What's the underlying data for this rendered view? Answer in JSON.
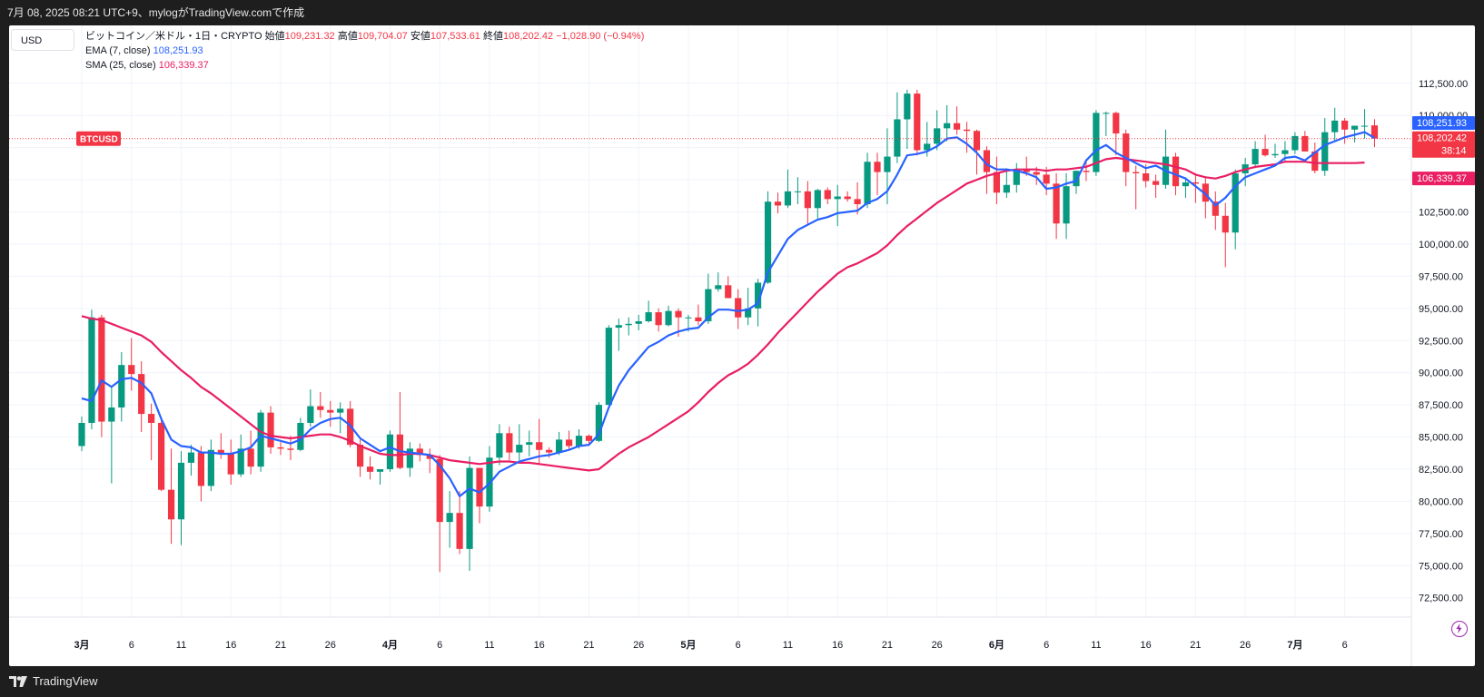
{
  "header": {
    "caption": "7月 08, 2025 08:21 UTC+9、mylogがTradingView.comで作成"
  },
  "currency_button": "USD",
  "legend": {
    "symbol": "ビットコイン／米ドル・1日・CRYPTO",
    "open_label": "始値",
    "open": "109,231.32",
    "high_label": "高値",
    "high": "109,704.07",
    "low_label": "安値",
    "low": "107,533.61",
    "close_label": "終値",
    "close": "108,202.42",
    "change": "−1,028.90 (−0.94%)",
    "ema_label": "EMA (7, close)",
    "ema_value": "108,251.93",
    "sma_label": "SMA (25, close)",
    "sma_value": "106,339.37"
  },
  "price_tags": {
    "ema": "108,251.93",
    "last": "108,202.42",
    "countdown": "38:14",
    "sma": "106,339.37",
    "symbol_tag": "BTCUSD"
  },
  "footer": {
    "brand": "TradingView"
  },
  "colors": {
    "up": "#089981",
    "down": "#f23645",
    "ema": "#2962ff",
    "sma": "#e91e63",
    "last_price": "#f23645"
  },
  "chart_data": {
    "type": "candlestick",
    "timeframe": "1D",
    "ylim": [
      71000,
      117000
    ],
    "y_ticks": [
      "72,500.00",
      "75,000.00",
      "77,500.00",
      "80,000.00",
      "82,500.00",
      "85,000.00",
      "87,500.00",
      "90,000.00",
      "92,500.00",
      "95,000.00",
      "97,500.00",
      "100,000.00",
      "102,500.00",
      "105,000.00",
      "107,500.00",
      "110,000.00",
      "112,500.00"
    ],
    "x_ticks": [
      {
        "label": "3月",
        "i": 0
      },
      {
        "label": "6",
        "i": 5
      },
      {
        "label": "11",
        "i": 10
      },
      {
        "label": "16",
        "i": 15
      },
      {
        "label": "21",
        "i": 20
      },
      {
        "label": "26",
        "i": 25
      },
      {
        "label": "4月",
        "i": 31
      },
      {
        "label": "6",
        "i": 36
      },
      {
        "label": "11",
        "i": 41
      },
      {
        "label": "16",
        "i": 46
      },
      {
        "label": "21",
        "i": 51
      },
      {
        "label": "26",
        "i": 56
      },
      {
        "label": "5月",
        "i": 61
      },
      {
        "label": "6",
        "i": 66
      },
      {
        "label": "11",
        "i": 71
      },
      {
        "label": "16",
        "i": 76
      },
      {
        "label": "21",
        "i": 81
      },
      {
        "label": "26",
        "i": 86
      },
      {
        "label": "6月",
        "i": 92
      },
      {
        "label": "6",
        "i": 97
      },
      {
        "label": "11",
        "i": 102
      },
      {
        "label": "16",
        "i": 107
      },
      {
        "label": "21",
        "i": 112
      },
      {
        "label": "26",
        "i": 117
      },
      {
        "label": "7月",
        "i": 122
      },
      {
        "label": "6",
        "i": 127
      }
    ],
    "ohlc": [
      [
        84300,
        86600,
        83900,
        86100
      ],
      [
        86100,
        94900,
        85600,
        94300
      ],
      [
        94300,
        94500,
        85000,
        86200
      ],
      [
        86200,
        88900,
        81400,
        87300
      ],
      [
        87300,
        91600,
        86200,
        90600
      ],
      [
        90600,
        92700,
        88600,
        89900
      ],
      [
        89900,
        90900,
        85400,
        86800
      ],
      [
        86800,
        87600,
        83200,
        86100
      ],
      [
        86100,
        86300,
        80800,
        80900
      ],
      [
        80900,
        84100,
        76700,
        78600
      ],
      [
        78600,
        83900,
        76600,
        83000
      ],
      [
        83000,
        84400,
        82000,
        83800
      ],
      [
        83800,
        84300,
        80000,
        81200
      ],
      [
        81200,
        84800,
        80800,
        84000
      ],
      [
        84000,
        85300,
        83300,
        83700
      ],
      [
        83700,
        84800,
        81300,
        82100
      ],
      [
        82100,
        85200,
        81900,
        84100
      ],
      [
        84100,
        85500,
        82100,
        82700
      ],
      [
        82700,
        87100,
        82300,
        86900
      ],
      [
        86900,
        87400,
        83700,
        84200
      ],
      [
        84200,
        84600,
        83600,
        84100
      ],
      [
        84100,
        85100,
        83200,
        84000
      ],
      [
        84000,
        86500,
        83900,
        86100
      ],
      [
        86100,
        88700,
        85800,
        87400
      ],
      [
        87400,
        88500,
        86500,
        87100
      ],
      [
        87100,
        87800,
        85800,
        86900
      ],
      [
        86900,
        87700,
        85300,
        87200
      ],
      [
        87200,
        87800,
        84200,
        84400
      ],
      [
        84400,
        84800,
        81900,
        82700
      ],
      [
        82700,
        83500,
        81700,
        82300
      ],
      [
        82300,
        82500,
        81300,
        82500
      ],
      [
        82500,
        85500,
        82300,
        85200
      ],
      [
        85200,
        88500,
        82500,
        82600
      ],
      [
        82600,
        84600,
        81900,
        84100
      ],
      [
        84100,
        84500,
        83100,
        83600
      ],
      [
        83600,
        84100,
        82200,
        83300
      ],
      [
        83300,
        83600,
        74500,
        78400
      ],
      [
        78400,
        80800,
        76400,
        79100
      ],
      [
        79100,
        80800,
        75900,
        76300
      ],
      [
        76300,
        83500,
        74600,
        82600
      ],
      [
        82600,
        82600,
        78300,
        79600
      ],
      [
        79600,
        84300,
        79200,
        83400
      ],
      [
        83400,
        86000,
        82800,
        85300
      ],
      [
        85300,
        85800,
        83200,
        83800
      ],
      [
        83800,
        86000,
        83200,
        84400
      ],
      [
        84400,
        85500,
        83500,
        84600
      ],
      [
        84600,
        86400,
        82900,
        84000
      ],
      [
        84000,
        84200,
        83400,
        83800
      ],
      [
        83800,
        85400,
        83600,
        84800
      ],
      [
        84800,
        85500,
        84100,
        84300
      ],
      [
        84300,
        85600,
        84100,
        85100
      ],
      [
        85100,
        85200,
        84500,
        84700
      ],
      [
        84700,
        87700,
        84600,
        87500
      ],
      [
        87500,
        93700,
        87500,
        93500
      ],
      [
        93500,
        94200,
        91700,
        93700
      ],
      [
        93700,
        94300,
        92900,
        93800
      ],
      [
        93800,
        94500,
        93300,
        94000
      ],
      [
        94000,
        95600,
        93900,
        94700
      ],
      [
        94700,
        95000,
        93200,
        93700
      ],
      [
        93700,
        95200,
        93600,
        94800
      ],
      [
        94800,
        95000,
        92800,
        94300
      ],
      [
        94300,
        94500,
        93200,
        94300
      ],
      [
        94300,
        95300,
        93700,
        94000
      ],
      [
        94000,
        97700,
        93800,
        96500
      ],
      [
        96500,
        97800,
        96300,
        96800
      ],
      [
        96800,
        97500,
        95800,
        95800
      ],
      [
        95800,
        96500,
        93400,
        94300
      ],
      [
        94300,
        96600,
        93700,
        95000
      ],
      [
        95000,
        97300,
        93600,
        97000
      ],
      [
        97000,
        104100,
        96900,
        103300
      ],
      [
        103300,
        104000,
        102400,
        103000
      ],
      [
        103000,
        105800,
        102800,
        104100
      ],
      [
        104100,
        105200,
        103100,
        104100
      ],
      [
        104100,
        104900,
        101500,
        102800
      ],
      [
        102800,
        104300,
        102000,
        104200
      ],
      [
        104200,
        104400,
        103100,
        103500
      ],
      [
        103500,
        104600,
        101400,
        103700
      ],
      [
        103700,
        104100,
        103300,
        103500
      ],
      [
        103500,
        104800,
        102300,
        103100
      ],
      [
        103100,
        107100,
        102800,
        106400
      ],
      [
        106400,
        107100,
        103800,
        105600
      ],
      [
        105600,
        109000,
        103100,
        106800
      ],
      [
        106800,
        111800,
        106300,
        109700
      ],
      [
        109700,
        112000,
        107400,
        111700
      ],
      [
        111700,
        112000,
        106900,
        107300
      ],
      [
        107300,
        109500,
        106800,
        107800
      ],
      [
        107800,
        110400,
        107300,
        109000
      ],
      [
        109000,
        110800,
        108000,
        109400
      ],
      [
        109400,
        110700,
        108500,
        108900
      ],
      [
        108900,
        109500,
        107100,
        108800
      ],
      [
        108800,
        108900,
        105400,
        107300
      ],
      [
        107300,
        107600,
        103900,
        105600
      ],
      [
        105600,
        106800,
        103100,
        104000
      ],
      [
        104000,
        105900,
        103600,
        104600
      ],
      [
        104600,
        106300,
        104000,
        105800
      ],
      [
        105800,
        106800,
        105300,
        105600
      ],
      [
        105600,
        106000,
        104600,
        105400
      ],
      [
        105400,
        106000,
        103800,
        104700
      ],
      [
        104700,
        105500,
        100400,
        101600
      ],
      [
        101600,
        105500,
        100400,
        104500
      ],
      [
        104500,
        105700,
        103900,
        105700
      ],
      [
        105700,
        106500,
        104900,
        105600
      ],
      [
        105600,
        110400,
        105300,
        110200
      ],
      [
        110200,
        110300,
        108400,
        110200
      ],
      [
        110200,
        110300,
        106900,
        108600
      ],
      [
        108600,
        108900,
        104500,
        105600
      ],
      [
        105600,
        106100,
        102700,
        105500
      ],
      [
        105500,
        106200,
        104400,
        104900
      ],
      [
        104900,
        105400,
        103600,
        104600
      ],
      [
        104600,
        108900,
        104300,
        106800
      ],
      [
        106800,
        107100,
        103800,
        104500
      ],
      [
        104500,
        105200,
        103600,
        104800
      ],
      [
        104800,
        105500,
        103200,
        104700
      ],
      [
        104700,
        105200,
        102000,
        103300
      ],
      [
        103300,
        104100,
        101100,
        102200
      ],
      [
        102200,
        103200,
        98200,
        100900
      ],
      [
        100900,
        105800,
        99600,
        105500
      ],
      [
        105500,
        106700,
        104500,
        106200
      ],
      [
        106200,
        108000,
        105900,
        107400
      ],
      [
        107400,
        108500,
        106800,
        106900
      ],
      [
        106900,
        107800,
        106700,
        107000
      ],
      [
        107000,
        108000,
        106400,
        107300
      ],
      [
        107300,
        108700,
        107000,
        108400
      ],
      [
        108400,
        108800,
        107300,
        107200
      ],
      [
        107200,
        107900,
        105500,
        105700
      ],
      [
        105700,
        109800,
        105300,
        108700
      ],
      [
        108700,
        110600,
        108000,
        109600
      ],
      [
        109600,
        109800,
        107800,
        108900
      ],
      [
        108900,
        109200,
        107900,
        109200
      ],
      [
        109200,
        110500,
        108200,
        109200
      ],
      [
        109231,
        109704,
        107534,
        108202
      ]
    ],
    "ema7": [
      88000,
      87800,
      89400,
      88900,
      89500,
      89600,
      89200,
      88400,
      86400,
      84800,
      84300,
      84200,
      83800,
      83800,
      83700,
      83700,
      83900,
      84200,
      85100,
      84900,
      84700,
      84500,
      84800,
      85600,
      86100,
      86400,
      86500,
      85900,
      84900,
      84400,
      83900,
      84200,
      83900,
      83800,
      83700,
      83600,
      82800,
      81800,
      80400,
      81000,
      80700,
      81400,
      82300,
      82700,
      83100,
      83300,
      83500,
      83600,
      83800,
      84000,
      84300,
      84400,
      85200,
      87300,
      89000,
      90200,
      91100,
      92000,
      92400,
      92900,
      93200,
      93400,
      93500,
      94300,
      94900,
      94900,
      94800,
      94900,
      95400,
      97800,
      99100,
      100400,
      101100,
      101500,
      101900,
      102100,
      102400,
      102500,
      102600,
      103200,
      103500,
      104100,
      105400,
      106900,
      107000,
      107200,
      107600,
      108200,
      108300,
      107800,
      107100,
      106200,
      105800,
      105800,
      105700,
      105500,
      105200,
      104300,
      104400,
      104700,
      104900,
      106500,
      107300,
      107700,
      107100,
      106700,
      106300,
      105900,
      106100,
      105700,
      105400,
      105100,
      104500,
      103900,
      103000,
      103600,
      104500,
      105200,
      105500,
      105800,
      106100,
      106700,
      106800,
      106500,
      107100,
      107700,
      108000,
      108300,
      108500,
      108700,
      108252
    ],
    "sma25": [
      94400,
      94200,
      94100,
      93800,
      93500,
      93200,
      92900,
      92400,
      91600,
      90900,
      90200,
      89600,
      88900,
      88400,
      87800,
      87200,
      86600,
      86000,
      85400,
      85100,
      85000,
      84900,
      85000,
      85100,
      85200,
      85200,
      85000,
      84700,
      84300,
      84000,
      83700,
      83600,
      83600,
      83700,
      83700,
      83600,
      83400,
      83200,
      83100,
      83000,
      82900,
      83000,
      83100,
      83100,
      83000,
      83000,
      82900,
      82800,
      82700,
      82600,
      82500,
      82400,
      82500,
      83100,
      83700,
      84200,
      84600,
      85000,
      85500,
      86000,
      86500,
      87000,
      87700,
      88500,
      89200,
      89800,
      90200,
      90700,
      91400,
      92200,
      93100,
      93900,
      94700,
      95500,
      96300,
      97000,
      97700,
      98200,
      98500,
      98900,
      99300,
      99900,
      100700,
      101400,
      102000,
      102600,
      103200,
      103700,
      104200,
      104700,
      105000,
      105300,
      105500,
      105700,
      105800,
      105800,
      105800,
      105700,
      105800,
      105800,
      105900,
      106000,
      106300,
      106600,
      106700,
      106600,
      106500,
      106400,
      106300,
      106200,
      106000,
      105800,
      105400,
      105200,
      105100,
      105300,
      105600,
      105800,
      106000,
      106100,
      106200,
      106400,
      106400,
      106400,
      106300,
      106300,
      106300,
      106300,
      106300,
      106339
    ]
  }
}
